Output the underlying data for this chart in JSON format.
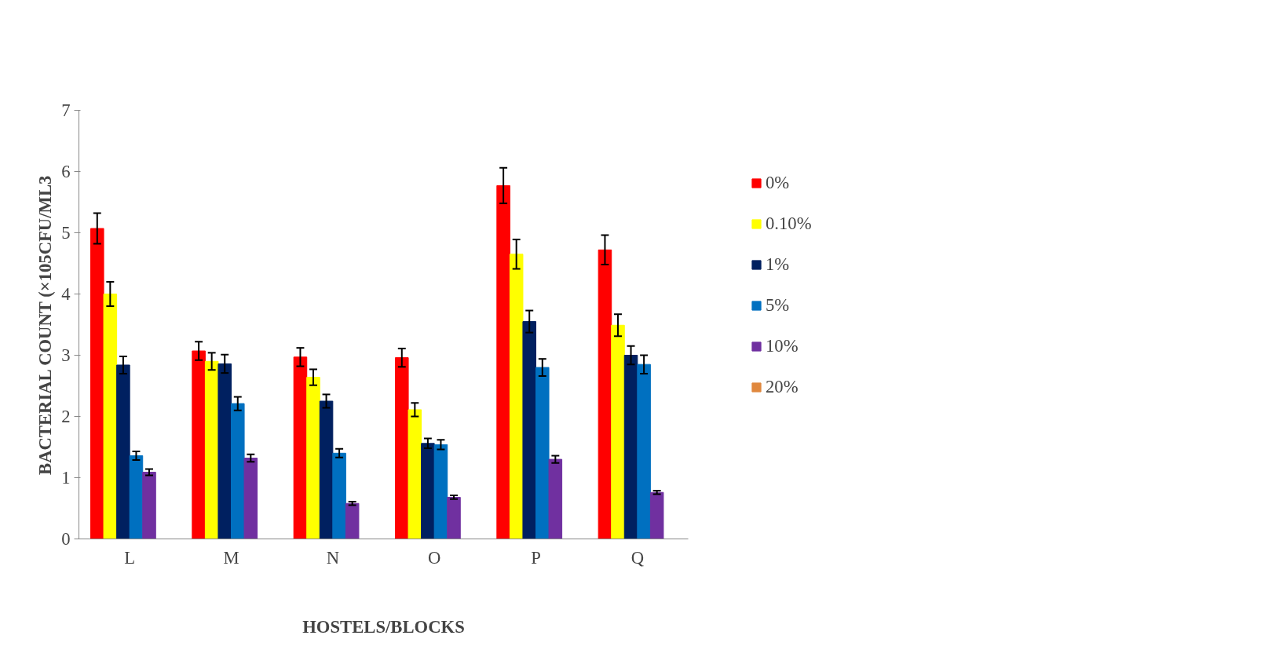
{
  "chart_data": {
    "type": "bar",
    "xlabel": "HOSTELS/BLOCKS",
    "ylabel": "BACTERIAL COUNT (×105CFU/ML3",
    "categories": [
      "L",
      "M",
      "N",
      "O",
      "P",
      "Q"
    ],
    "series": [
      {
        "name": "0%",
        "color": "#ff0000",
        "values": [
          5.07,
          3.07,
          2.97,
          2.96,
          5.77,
          4.72
        ],
        "errors": [
          0.25,
          0.15,
          0.15,
          0.15,
          0.29,
          0.24
        ]
      },
      {
        "name": "0.10%",
        "color": "#ffff00",
        "values": [
          4.0,
          2.9,
          2.64,
          2.11,
          4.65,
          3.49
        ],
        "errors": [
          0.2,
          0.14,
          0.13,
          0.11,
          0.24,
          0.18
        ]
      },
      {
        "name": "1%",
        "color": "#002060",
        "values": [
          2.84,
          2.86,
          2.25,
          1.56,
          3.55,
          3.0
        ],
        "errors": [
          0.14,
          0.15,
          0.11,
          0.08,
          0.18,
          0.15
        ]
      },
      {
        "name": "5%",
        "color": "#0070c0",
        "values": [
          1.36,
          2.21,
          1.4,
          1.54,
          2.8,
          2.85
        ],
        "errors": [
          0.07,
          0.11,
          0.07,
          0.08,
          0.14,
          0.15
        ]
      },
      {
        "name": "10%",
        "color": "#7030a0",
        "values": [
          1.09,
          1.32,
          0.58,
          0.68,
          1.3,
          0.76
        ],
        "errors": [
          0.05,
          0.06,
          0.03,
          0.03,
          0.06,
          0.03
        ]
      },
      {
        "name": "20%",
        "color": "#e0883e",
        "values": [
          0,
          0,
          0,
          0,
          0,
          0
        ]
      }
    ],
    "ylim": [
      0,
      7
    ],
    "yticks": [
      0,
      1,
      2,
      3,
      4,
      5,
      6,
      7
    ],
    "grid": false,
    "legend": "top right"
  }
}
